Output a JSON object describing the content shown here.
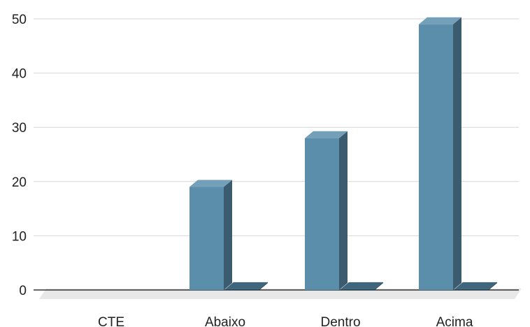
{
  "chart_data": {
    "type": "bar",
    "style": "3d",
    "categories": [
      "CTE",
      "Abaixo",
      "Dentro",
      "Acima"
    ],
    "series": [
      {
        "values": [
          0,
          19,
          28,
          49
        ],
        "color": "#5a8eab"
      },
      {
        "values": [
          0,
          0,
          0,
          0
        ],
        "color": "#1e4b66"
      }
    ],
    "title": "",
    "xlabel": "",
    "ylabel": "",
    "ylim": [
      0,
      50
    ],
    "yticks": [
      0,
      10,
      20,
      30,
      40,
      50
    ],
    "grid": true,
    "legend": "none"
  },
  "colors": {
    "grid": "#d6d6d6",
    "axis": "#333333",
    "floor": "#e8e8e8"
  }
}
